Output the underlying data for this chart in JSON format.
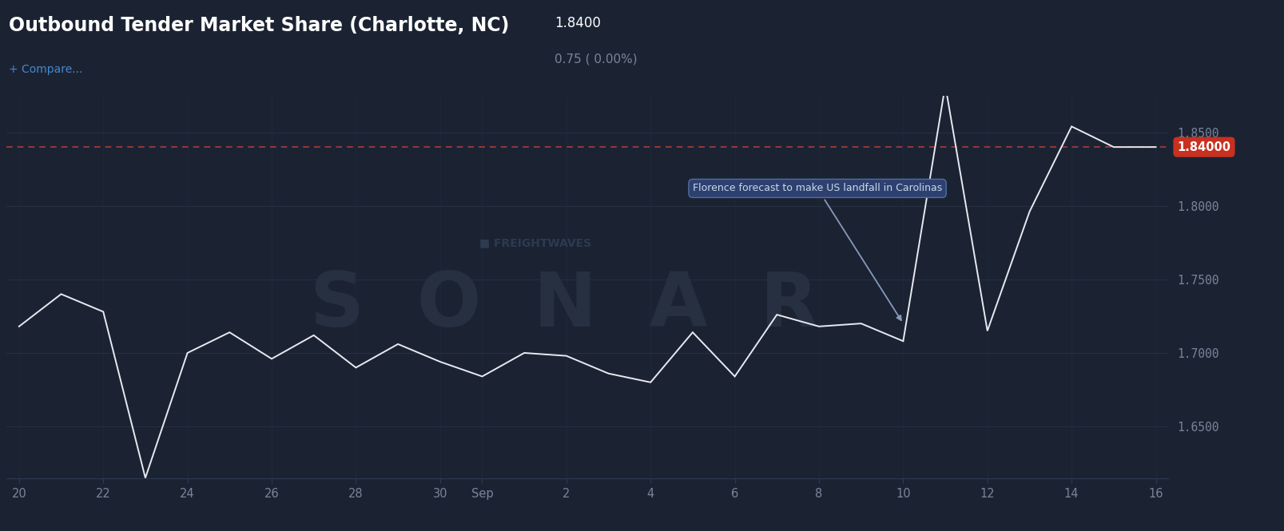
{
  "title": "Outbound Tender Market Share (Charlotte, NC)",
  "title_value": "1.8400",
  "title_sub": "0.75 ( 0.00%)",
  "compare_text": "+ Compare...",
  "background_color": "#1b2333",
  "plot_bg_color": "#1b2333",
  "line_color": "#e8eaf0",
  "grid_color": "#252f42",
  "axis_color": "#7a8499",
  "dashed_line_value": 1.84,
  "dashed_line_color": "#c84040",
  "current_value": 1.84,
  "current_value_bg": "#c84030",
  "ylim": [
    1.615,
    1.875
  ],
  "yticks": [
    1.65,
    1.7,
    1.75,
    1.8,
    1.85
  ],
  "annotation_text": "Florence forecast to make US landfall in Carolinas",
  "watermark_sonar": "SONAR",
  "watermark_fw": "FREIGHTWAVES",
  "x_labels": [
    "20",
    "22",
    "24",
    "26",
    "28",
    "30",
    "Sep",
    "2",
    "4",
    "6",
    "8",
    "10",
    "12",
    "14",
    "16"
  ],
  "x_positions": [
    0,
    2,
    4,
    6,
    8,
    10,
    11,
    13,
    15,
    17,
    19,
    21,
    23,
    25,
    27
  ],
  "data_x": [
    0,
    1,
    2,
    3,
    4,
    5,
    6,
    7,
    8,
    9,
    10,
    11,
    12,
    13,
    14,
    15,
    16,
    17,
    18,
    19,
    20,
    21,
    22,
    23,
    24,
    25,
    26,
    27
  ],
  "data_y": [
    1.718,
    1.74,
    1.728,
    1.615,
    1.7,
    1.714,
    1.696,
    1.712,
    1.69,
    1.706,
    1.694,
    1.684,
    1.7,
    1.698,
    1.686,
    1.68,
    1.714,
    1.684,
    1.726,
    1.718,
    1.72,
    1.708,
    1.882,
    1.715,
    1.796,
    1.854,
    1.84,
    1.84
  ]
}
